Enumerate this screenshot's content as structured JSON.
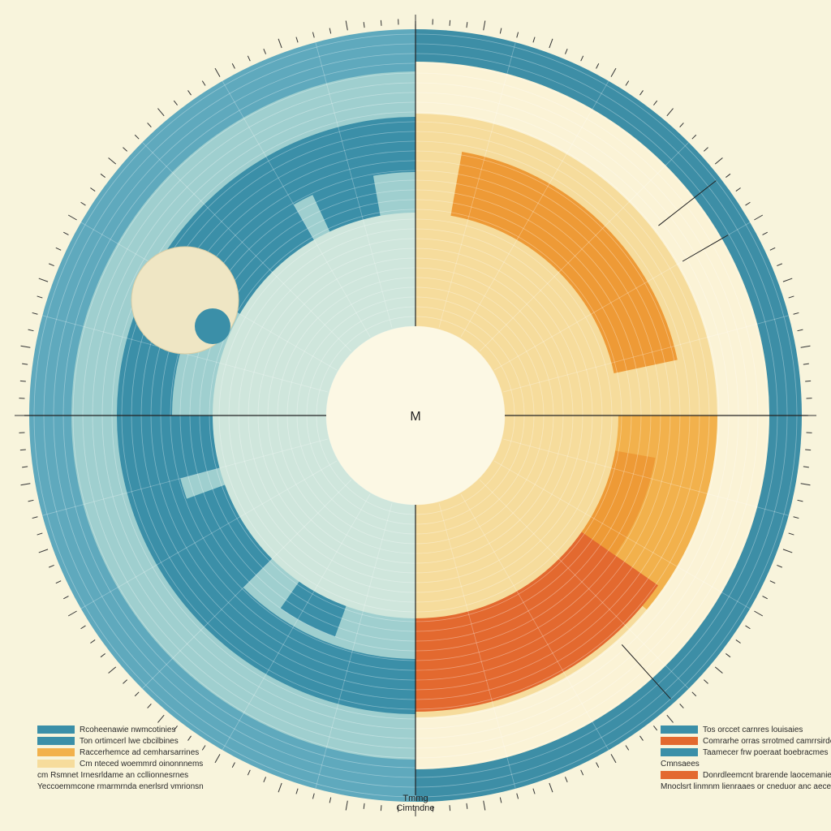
{
  "chart_data": {
    "type": "polar-area",
    "center_label": "M",
    "bottom_title_line1": "Tmmg",
    "bottom_title_line2": "Cimtndne",
    "colors": {
      "background": "#f8f4dc",
      "deep_teal": "#3b8fa8",
      "mid_teal": "#5fa9bd",
      "light_teal": "#9fcfcf",
      "pale_teal": "#cfe6dc",
      "pale_yellow": "#f6dc9c",
      "amber": "#f2b14c",
      "orange": "#ee9a36",
      "red_orange": "#e3692f",
      "ring_blue": "#3d8ea6"
    },
    "left_legend": [
      {
        "color": "#3b8fa8",
        "label": "Rcoheenawie nwmcotinies"
      },
      {
        "color": "#3b8fa8",
        "label": "Ton ortimcerl lwe cbcilbines"
      },
      {
        "color": "#f2b14c",
        "label": "Raccerhemce ad cemharsarrines"
      },
      {
        "color": "#f6dc9c",
        "label": "Cm nteced woemmrd oinonnnems"
      },
      {
        "color": "",
        "label": "cm Rsmnet Irnesrldame an ccllionnesrnes"
      },
      {
        "color": "",
        "label": "Yeccoemmcone rmarmrnda enerlsrd vmrionsn"
      }
    ],
    "right_legend": [
      {
        "color": "#3b8fa8",
        "label": "Tos orccet carnres louisaies"
      },
      {
        "color": "#e3692f",
        "label": "Comrarhe orras srrotmed camrrsirde"
      },
      {
        "color": "#3b8fa8",
        "label": "Taamecer frw poeraat boebracmes"
      },
      {
        "color": "",
        "label": "Cmnsaees"
      },
      {
        "color": "#e3692f",
        "label": "Donrdleemcnt brarende laocemanies"
      },
      {
        "color": "",
        "label": "Mnoclsrt linmnm lienraaes or cneduor anc aecenaies"
      }
    ]
  }
}
